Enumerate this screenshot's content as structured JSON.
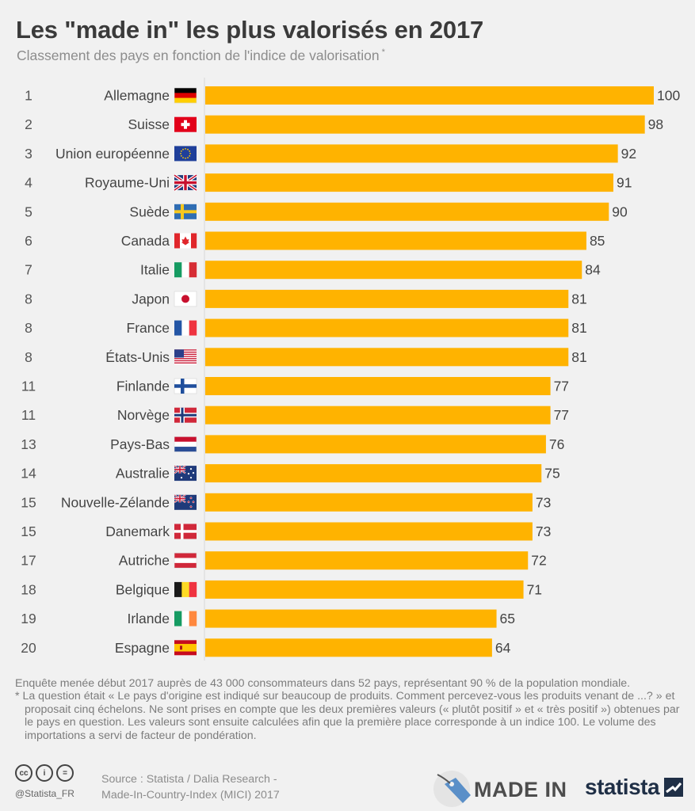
{
  "header": {
    "title": "Les \"made in\" les plus valorisés en 2017",
    "subtitle": "Classement des pays en fonction de l'indice de valorisation",
    "subtitle_mark": "*"
  },
  "chart_data": {
    "type": "bar",
    "orientation": "horizontal",
    "title": "Les \"made in\" les plus valorisés en 2017",
    "subtitle": "Classement des pays en fonction de l'indice de valorisation *",
    "xlabel": "",
    "ylabel": "",
    "xlim": [
      0,
      100
    ],
    "grid": false,
    "bar_color": "#ffb300",
    "ranks": [
      "1",
      "2",
      "3",
      "4",
      "5",
      "6",
      "7",
      "8",
      "8",
      "8",
      "11",
      "11",
      "13",
      "14",
      "15",
      "15",
      "17",
      "18",
      "19",
      "20"
    ],
    "categories": [
      "Allemagne",
      "Suisse",
      "Union européenne",
      "Royaume-Uni",
      "Suède",
      "Canada",
      "Italie",
      "Japon",
      "France",
      "États-Unis",
      "Finlande",
      "Norvège",
      "Pays-Bas",
      "Australie",
      "Nouvelle-Zélande",
      "Danemark",
      "Autriche",
      "Belgique",
      "Irlande",
      "Espagne"
    ],
    "flags": [
      "germany-flag-icon",
      "switzerland-flag-icon",
      "eu-flag-icon",
      "uk-flag-icon",
      "sweden-flag-icon",
      "canada-flag-icon",
      "italy-flag-icon",
      "japan-flag-icon",
      "france-flag-icon",
      "usa-flag-icon",
      "finland-flag-icon",
      "norway-flag-icon",
      "netherlands-flag-icon",
      "australia-flag-icon",
      "new-zealand-flag-icon",
      "denmark-flag-icon",
      "austria-flag-icon",
      "belgium-flag-icon",
      "ireland-flag-icon",
      "spain-flag-icon"
    ],
    "values": [
      100,
      98,
      92,
      91,
      90,
      85,
      84,
      81,
      81,
      81,
      77,
      77,
      76,
      75,
      73,
      73,
      72,
      71,
      65,
      64
    ]
  },
  "footnotes": {
    "survey": "Enquête menée début 2017 auprès de 43 000 consommateurs dans 52 pays, représentant 90 % de la population mondiale.",
    "question": "* La question était « Le pays d'origine est indiqué sur beaucoup de produits. Comment percevez-vous les produits venant de ...? » et proposait cinq échelons. Ne sont prises en compte que les deux premières valeurs (« plutôt positif » et « très positif ») obtenues par le pays en question. Les valeurs sont ensuite calculées afin que la première place corresponde à un indice 100. Le volume des importations a servi de facteur de pondération."
  },
  "footer": {
    "license_icons": [
      "cc",
      "i",
      "="
    ],
    "handle": "@Statista_FR",
    "source_line1": "Source : Statista / Dalia Research -",
    "source_line2": "Made-In-Country-Index (MICI) 2017",
    "made_in_label": "MADE IN",
    "brand": "statista"
  }
}
